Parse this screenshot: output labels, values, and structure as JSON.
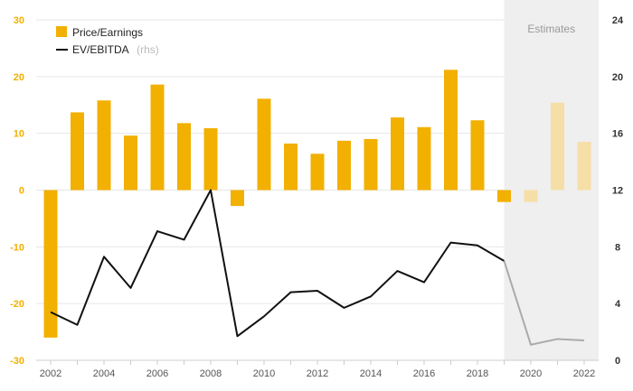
{
  "chart_data": {
    "type": "bar",
    "x": [
      2002,
      2003,
      2004,
      2005,
      2006,
      2007,
      2008,
      2009,
      2010,
      2011,
      2012,
      2013,
      2014,
      2015,
      2016,
      2017,
      2018,
      2019,
      2020,
      2021,
      2022
    ],
    "x_tick_labels": [
      "2002",
      "2004",
      "2006",
      "2008",
      "2010",
      "2012",
      "2014",
      "2016",
      "2018",
      "2020",
      "2022"
    ],
    "left_axis": {
      "ylim": [
        -30,
        30
      ],
      "ticks": [
        "30",
        "20",
        "10",
        "0",
        "-10",
        "-20",
        "-30"
      ],
      "color": "#f2b000"
    },
    "right_axis": {
      "ylim": [
        0,
        24
      ],
      "ticks": [
        "24",
        "20",
        "16",
        "12",
        "8",
        "4",
        "0"
      ]
    },
    "series": [
      {
        "name": "Price/Earnings",
        "type": "bar",
        "axis": "left",
        "color": "#f2b000",
        "estimate_color": "#f6dfa6",
        "values": [
          -26,
          13.7,
          15.8,
          9.6,
          18.6,
          11.8,
          10.9,
          -2.8,
          16.1,
          8.2,
          6.4,
          8.7,
          9.0,
          12.8,
          11.1,
          21.2,
          12.3,
          -2.1,
          -2.1,
          15.4,
          8.5
        ]
      },
      {
        "name": "EV/EBITDA",
        "name_suffix": "(rhs)",
        "type": "line",
        "axis": "right",
        "color": "#111111",
        "estimate_color": "#aaaaaa",
        "values": [
          3.4,
          2.5,
          7.3,
          5.1,
          9.1,
          8.5,
          12.0,
          1.7,
          3.1,
          4.8,
          4.9,
          3.7,
          4.5,
          6.3,
          5.5,
          8.3,
          8.1,
          7.0,
          1.1,
          1.5,
          1.4
        ]
      }
    ],
    "estimates": {
      "label": "Estimates",
      "from_year": 2019
    },
    "legend": "top-left",
    "grid": true
  }
}
